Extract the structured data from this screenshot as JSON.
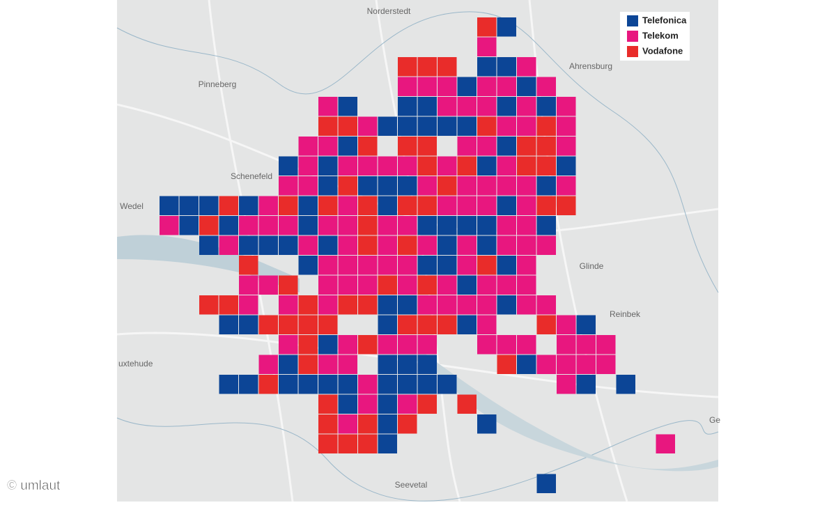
{
  "legend": [
    {
      "label": "Telefonica",
      "color": "#0c4596"
    },
    {
      "label": "Telekom",
      "color": "#e8177f"
    },
    {
      "label": "Vodafone",
      "color": "#e92c2a"
    }
  ],
  "places": [
    "Norderstedt",
    "Pinneberg",
    "Ahrensburg",
    "Schenefeld",
    "Wedel",
    "Glinde",
    "Reinbek",
    "uxtehude",
    "Seevetal",
    "Ge"
  ],
  "credit": "© umlaut",
  "grid": [
    [
      null,
      null,
      null,
      null,
      null,
      null,
      null,
      null,
      null,
      null,
      null,
      null,
      null,
      null,
      null,
      null,
      2,
      0,
      null,
      null,
      null,
      null,
      null,
      null,
      null,
      null
    ],
    [
      null,
      null,
      null,
      null,
      null,
      null,
      null,
      null,
      null,
      null,
      null,
      null,
      null,
      null,
      null,
      null,
      1,
      null,
      null,
      null,
      null,
      null,
      null,
      null,
      null,
      null
    ],
    [
      null,
      null,
      null,
      null,
      null,
      null,
      null,
      null,
      null,
      null,
      null,
      null,
      2,
      2,
      2,
      null,
      0,
      0,
      1,
      null,
      null,
      null,
      null,
      null,
      null,
      null
    ],
    [
      null,
      null,
      null,
      null,
      null,
      null,
      null,
      null,
      null,
      null,
      null,
      null,
      1,
      1,
      1,
      0,
      1,
      1,
      0,
      1,
      null,
      null,
      null,
      null,
      null,
      null
    ],
    [
      null,
      null,
      null,
      null,
      null,
      null,
      null,
      null,
      1,
      0,
      null,
      null,
      0,
      0,
      1,
      1,
      1,
      0,
      1,
      0,
      1,
      null,
      null,
      null,
      null,
      null
    ],
    [
      null,
      null,
      null,
      null,
      null,
      null,
      null,
      null,
      2,
      2,
      1,
      0,
      0,
      0,
      0,
      0,
      2,
      1,
      1,
      2,
      1,
      null,
      null,
      null,
      null,
      null
    ],
    [
      null,
      null,
      null,
      null,
      null,
      null,
      null,
      1,
      1,
      0,
      2,
      null,
      2,
      2,
      null,
      1,
      1,
      0,
      2,
      2,
      1,
      null,
      null,
      null,
      null,
      null
    ],
    [
      null,
      null,
      null,
      null,
      null,
      null,
      0,
      1,
      0,
      1,
      1,
      1,
      1,
      2,
      1,
      2,
      0,
      1,
      2,
      2,
      0,
      null,
      null,
      null,
      null,
      null
    ],
    [
      null,
      null,
      null,
      null,
      null,
      null,
      1,
      1,
      0,
      2,
      0,
      0,
      0,
      1,
      2,
      1,
      1,
      1,
      1,
      0,
      1,
      null,
      null,
      null,
      null,
      null
    ],
    [
      0,
      0,
      0,
      2,
      0,
      1,
      2,
      0,
      2,
      1,
      2,
      0,
      2,
      2,
      1,
      1,
      1,
      0,
      1,
      2,
      2,
      null,
      null,
      null,
      null,
      null
    ],
    [
      1,
      0,
      2,
      0,
      1,
      1,
      1,
      0,
      1,
      1,
      2,
      1,
      1,
      0,
      0,
      0,
      0,
      1,
      1,
      0,
      null,
      null,
      null,
      null,
      null,
      null
    ],
    [
      null,
      null,
      0,
      1,
      0,
      0,
      0,
      1,
      0,
      1,
      2,
      1,
      2,
      1,
      0,
      1,
      0,
      1,
      1,
      1,
      null,
      null,
      null,
      null,
      null,
      null
    ],
    [
      null,
      null,
      null,
      null,
      2,
      null,
      null,
      0,
      1,
      1,
      1,
      1,
      1,
      0,
      0,
      1,
      2,
      0,
      1,
      null,
      null,
      null,
      null,
      null,
      null,
      null
    ],
    [
      null,
      null,
      null,
      null,
      1,
      1,
      2,
      null,
      1,
      1,
      1,
      2,
      1,
      2,
      1,
      0,
      1,
      1,
      1,
      null,
      null,
      null,
      null,
      null,
      null,
      null
    ],
    [
      null,
      null,
      2,
      2,
      1,
      null,
      1,
      2,
      1,
      2,
      2,
      0,
      0,
      1,
      1,
      1,
      1,
      0,
      1,
      1,
      null,
      null,
      null,
      null,
      null,
      null
    ],
    [
      null,
      null,
      null,
      0,
      0,
      2,
      2,
      2,
      2,
      null,
      null,
      0,
      2,
      2,
      2,
      0,
      1,
      null,
      null,
      2,
      1,
      0,
      null,
      null,
      null,
      null
    ],
    [
      null,
      null,
      null,
      null,
      null,
      null,
      1,
      2,
      0,
      1,
      2,
      1,
      1,
      1,
      null,
      null,
      1,
      1,
      1,
      null,
      1,
      1,
      1,
      null,
      null,
      null
    ],
    [
      null,
      null,
      null,
      null,
      null,
      1,
      0,
      2,
      1,
      1,
      null,
      0,
      0,
      0,
      null,
      null,
      null,
      2,
      0,
      1,
      1,
      1,
      1,
      null,
      null,
      null
    ],
    [
      null,
      null,
      null,
      0,
      0,
      2,
      0,
      0,
      0,
      0,
      1,
      0,
      0,
      0,
      0,
      null,
      null,
      null,
      null,
      null,
      1,
      0,
      null,
      0,
      null,
      null
    ],
    [
      null,
      null,
      null,
      null,
      null,
      null,
      null,
      null,
      2,
      0,
      1,
      0,
      1,
      2,
      null,
      2,
      null,
      null,
      null,
      null,
      null,
      null,
      null,
      null,
      null,
      null
    ],
    [
      null,
      null,
      null,
      null,
      null,
      null,
      null,
      null,
      2,
      1,
      2,
      0,
      2,
      null,
      null,
      null,
      0,
      null,
      null,
      null,
      null,
      null,
      null,
      null,
      null,
      null
    ],
    [
      null,
      null,
      null,
      null,
      null,
      null,
      null,
      null,
      2,
      2,
      2,
      0,
      null,
      null,
      null,
      null,
      null,
      null,
      null,
      null,
      null,
      null,
      null,
      null,
      null,
      1
    ],
    [
      null,
      null,
      null,
      null,
      null,
      null,
      null,
      null,
      null,
      null,
      null,
      null,
      null,
      null,
      null,
      null,
      null,
      null,
      null,
      null,
      null,
      null,
      null,
      null,
      null,
      null
    ],
    [
      null,
      null,
      null,
      null,
      null,
      null,
      null,
      null,
      null,
      null,
      null,
      null,
      null,
      null,
      null,
      null,
      null,
      null,
      null,
      0,
      null,
      null,
      null,
      null,
      null,
      null
    ]
  ]
}
